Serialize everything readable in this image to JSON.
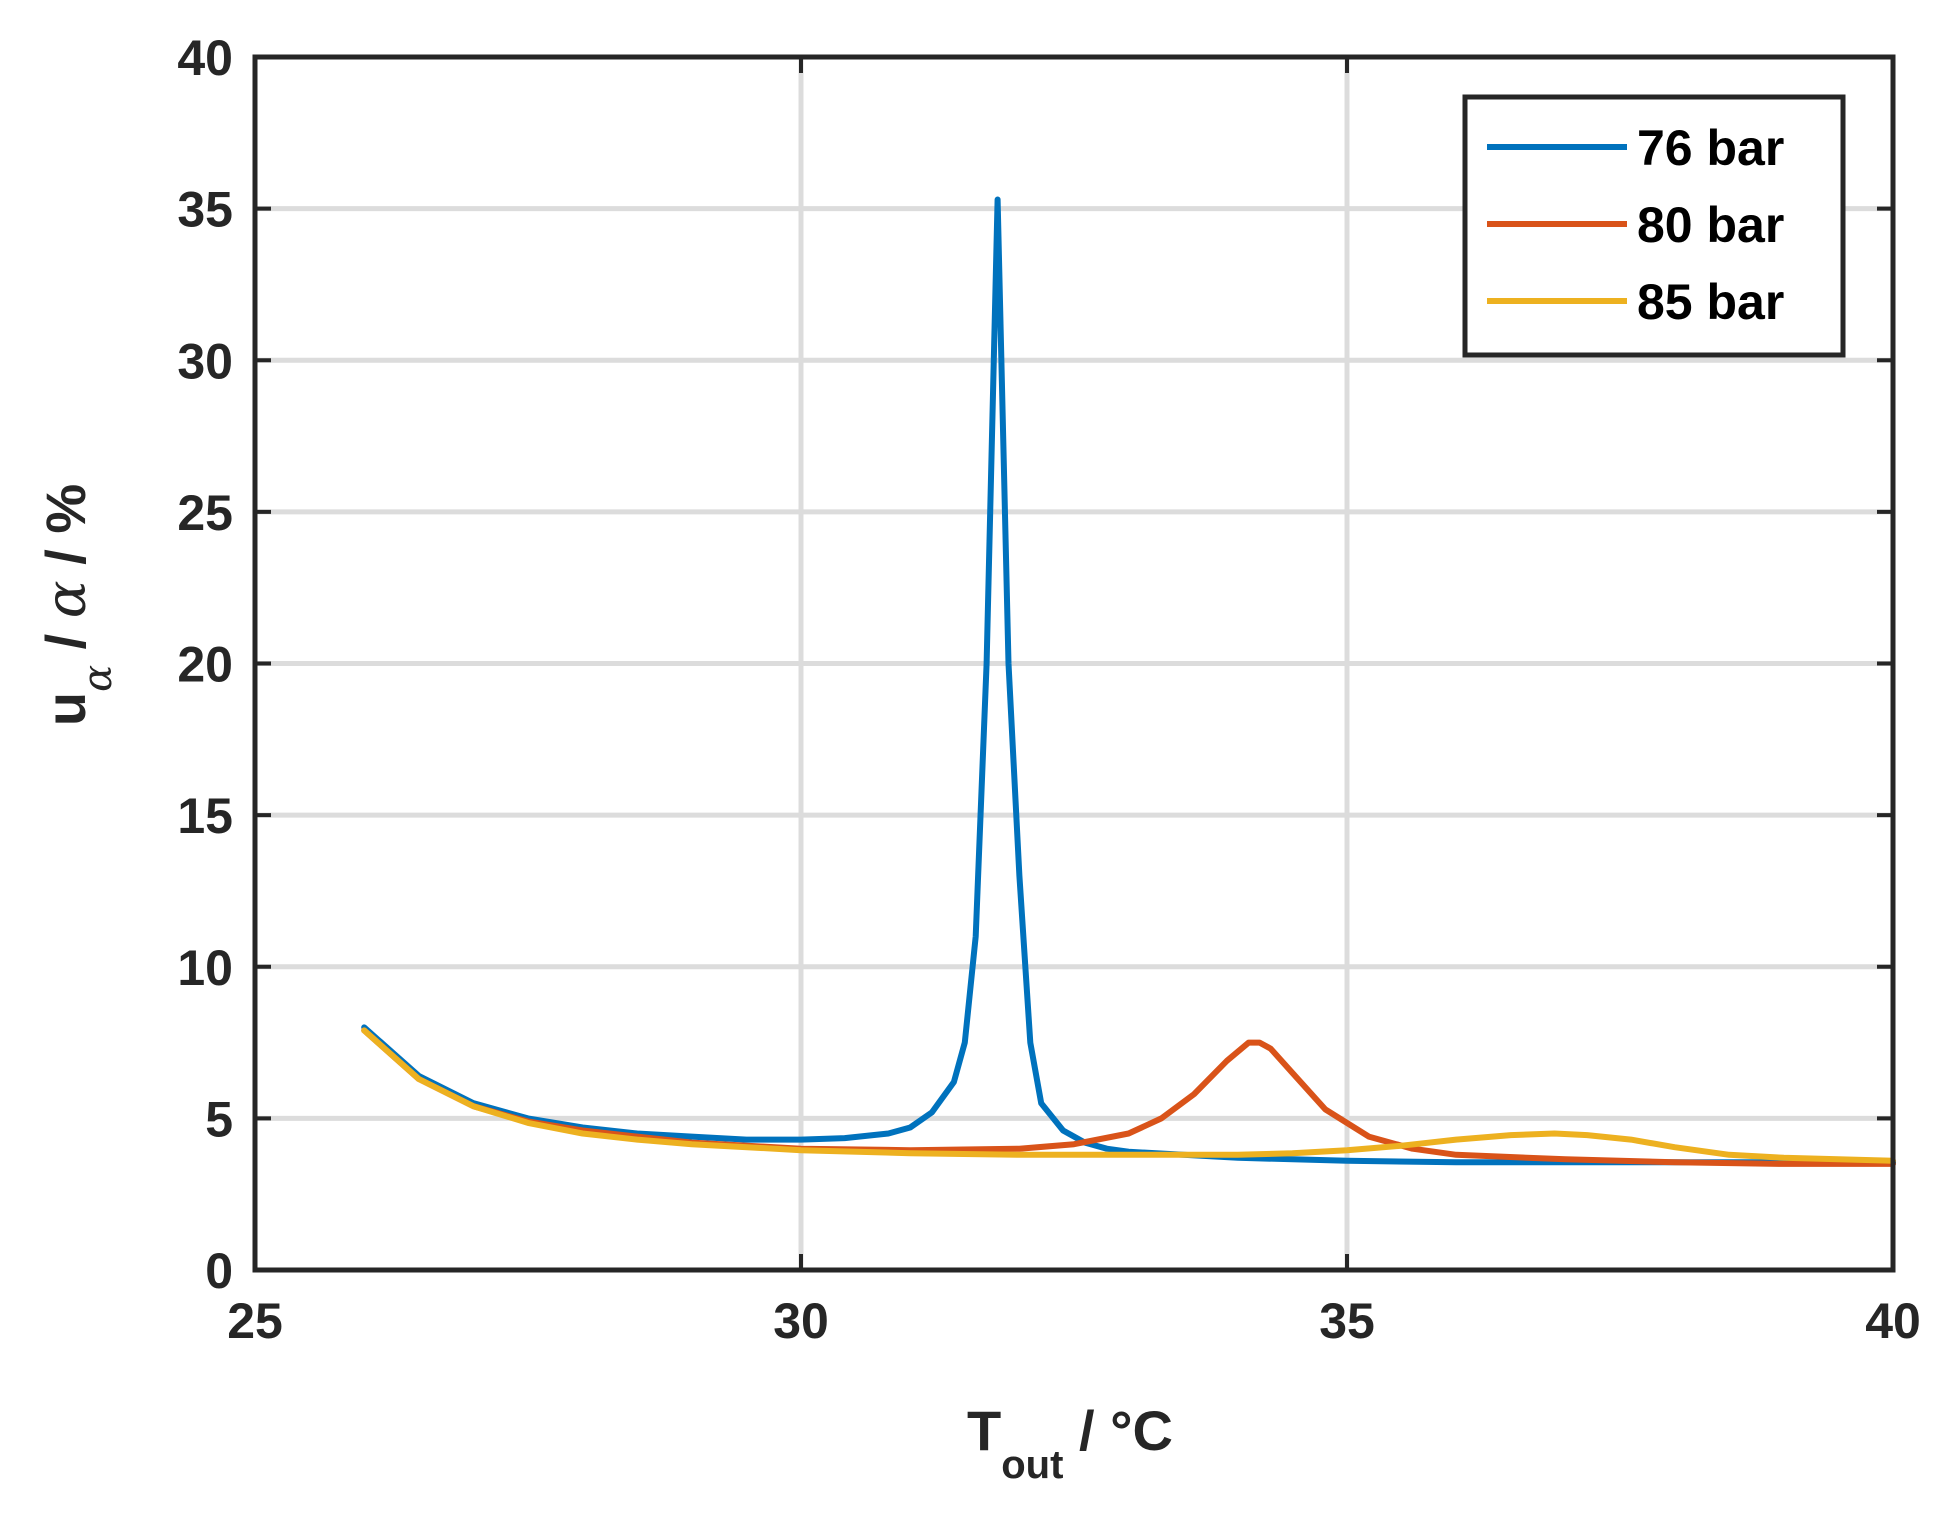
{
  "chart_data": {
    "type": "line",
    "xlabel": {
      "main": "T",
      "sub": "out",
      "rest": " / °C"
    },
    "ylabel": {
      "main": "u",
      "sub": "α",
      "rest1": " / ",
      "greek": "α",
      "rest2": " / %"
    },
    "xlim": [
      25,
      40
    ],
    "ylim": [
      0,
      40
    ],
    "xticks": [
      25,
      30,
      35,
      40
    ],
    "yticks": [
      0,
      5,
      10,
      15,
      20,
      25,
      30,
      35,
      40
    ],
    "grid": true,
    "legend_position": "top-right",
    "series": [
      {
        "name": "76 bar",
        "color": "#0072BD",
        "x": [
          26.0,
          26.5,
          27.0,
          27.5,
          28.0,
          28.5,
          29.0,
          29.5,
          30.0,
          30.4,
          30.8,
          31.0,
          31.2,
          31.4,
          31.5,
          31.6,
          31.7,
          31.8,
          31.9,
          32.0,
          32.1,
          32.2,
          32.4,
          32.6,
          32.8,
          33.0,
          33.5,
          34.0,
          35.0,
          36.0,
          37.0,
          38.0,
          39.0,
          40.0
        ],
        "y": [
          8.0,
          6.4,
          5.5,
          5.0,
          4.7,
          4.5,
          4.4,
          4.3,
          4.3,
          4.35,
          4.5,
          4.7,
          5.2,
          6.2,
          7.5,
          11.0,
          20.0,
          35.3,
          20.0,
          13.0,
          7.5,
          5.5,
          4.6,
          4.2,
          4.0,
          3.9,
          3.8,
          3.7,
          3.6,
          3.55,
          3.55,
          3.55,
          3.55,
          3.55
        ]
      },
      {
        "name": "80 bar",
        "color": "#D95319",
        "x": [
          26.0,
          26.5,
          27.0,
          27.5,
          28.0,
          28.5,
          29.0,
          30.0,
          31.0,
          32.0,
          32.5,
          33.0,
          33.3,
          33.6,
          33.9,
          34.1,
          34.2,
          34.3,
          34.5,
          34.8,
          35.2,
          35.6,
          36.0,
          37.0,
          38.0,
          39.0,
          40.0
        ],
        "y": [
          7.9,
          6.3,
          5.4,
          4.9,
          4.6,
          4.4,
          4.2,
          4.0,
          3.95,
          4.0,
          4.15,
          4.5,
          5.0,
          5.8,
          6.9,
          7.5,
          7.5,
          7.3,
          6.5,
          5.3,
          4.4,
          4.0,
          3.8,
          3.65,
          3.55,
          3.5,
          3.5
        ]
      },
      {
        "name": "85 bar",
        "color": "#EDB120",
        "x": [
          26.0,
          26.5,
          27.0,
          27.5,
          28.0,
          28.5,
          29.0,
          30.0,
          31.0,
          32.0,
          33.0,
          34.0,
          34.5,
          35.0,
          35.5,
          36.0,
          36.5,
          36.9,
          37.2,
          37.6,
          38.0,
          38.5,
          39.0,
          39.5,
          40.0
        ],
        "y": [
          7.9,
          6.3,
          5.4,
          4.85,
          4.5,
          4.3,
          4.15,
          3.95,
          3.85,
          3.8,
          3.8,
          3.8,
          3.85,
          3.95,
          4.1,
          4.3,
          4.45,
          4.5,
          4.45,
          4.3,
          4.05,
          3.8,
          3.7,
          3.65,
          3.6
        ]
      }
    ]
  }
}
